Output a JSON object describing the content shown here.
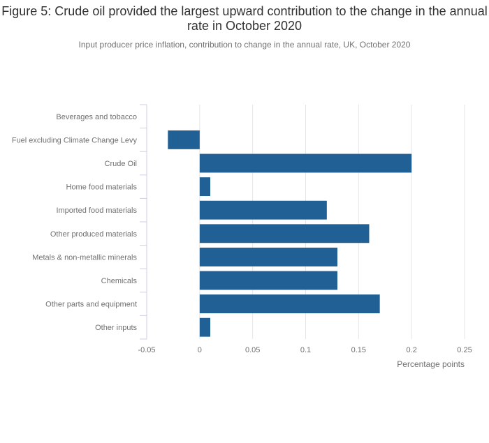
{
  "chart_data": {
    "type": "bar",
    "orientation": "horizontal",
    "title": "Figure 5: Crude oil provided the largest upward contribution to the change in the annual rate in October 2020",
    "subtitle": "Input producer price inflation, contribution to change in the annual rate, UK, October 2020",
    "categories": [
      "Beverages and tobacco",
      "Fuel excluding Climate Change Levy",
      "Crude Oil",
      "Home food materials",
      "Imported food materials",
      "Other produced materials",
      "Metals & non-metallic minerals",
      "Chemicals",
      "Other parts and equipment",
      "Other inputs"
    ],
    "values": [
      0.0,
      -0.03,
      0.2,
      0.01,
      0.12,
      0.16,
      0.13,
      0.13,
      0.17,
      0.01
    ],
    "xlabel": "Percentage points",
    "ylabel": "",
    "xlim": [
      -0.05,
      0.25
    ],
    "xticks": [
      "-0.05",
      "0",
      "0.05",
      "0.1",
      "0.15",
      "0.2",
      "0.25"
    ],
    "grid": true,
    "bar_color": "#206095"
  }
}
